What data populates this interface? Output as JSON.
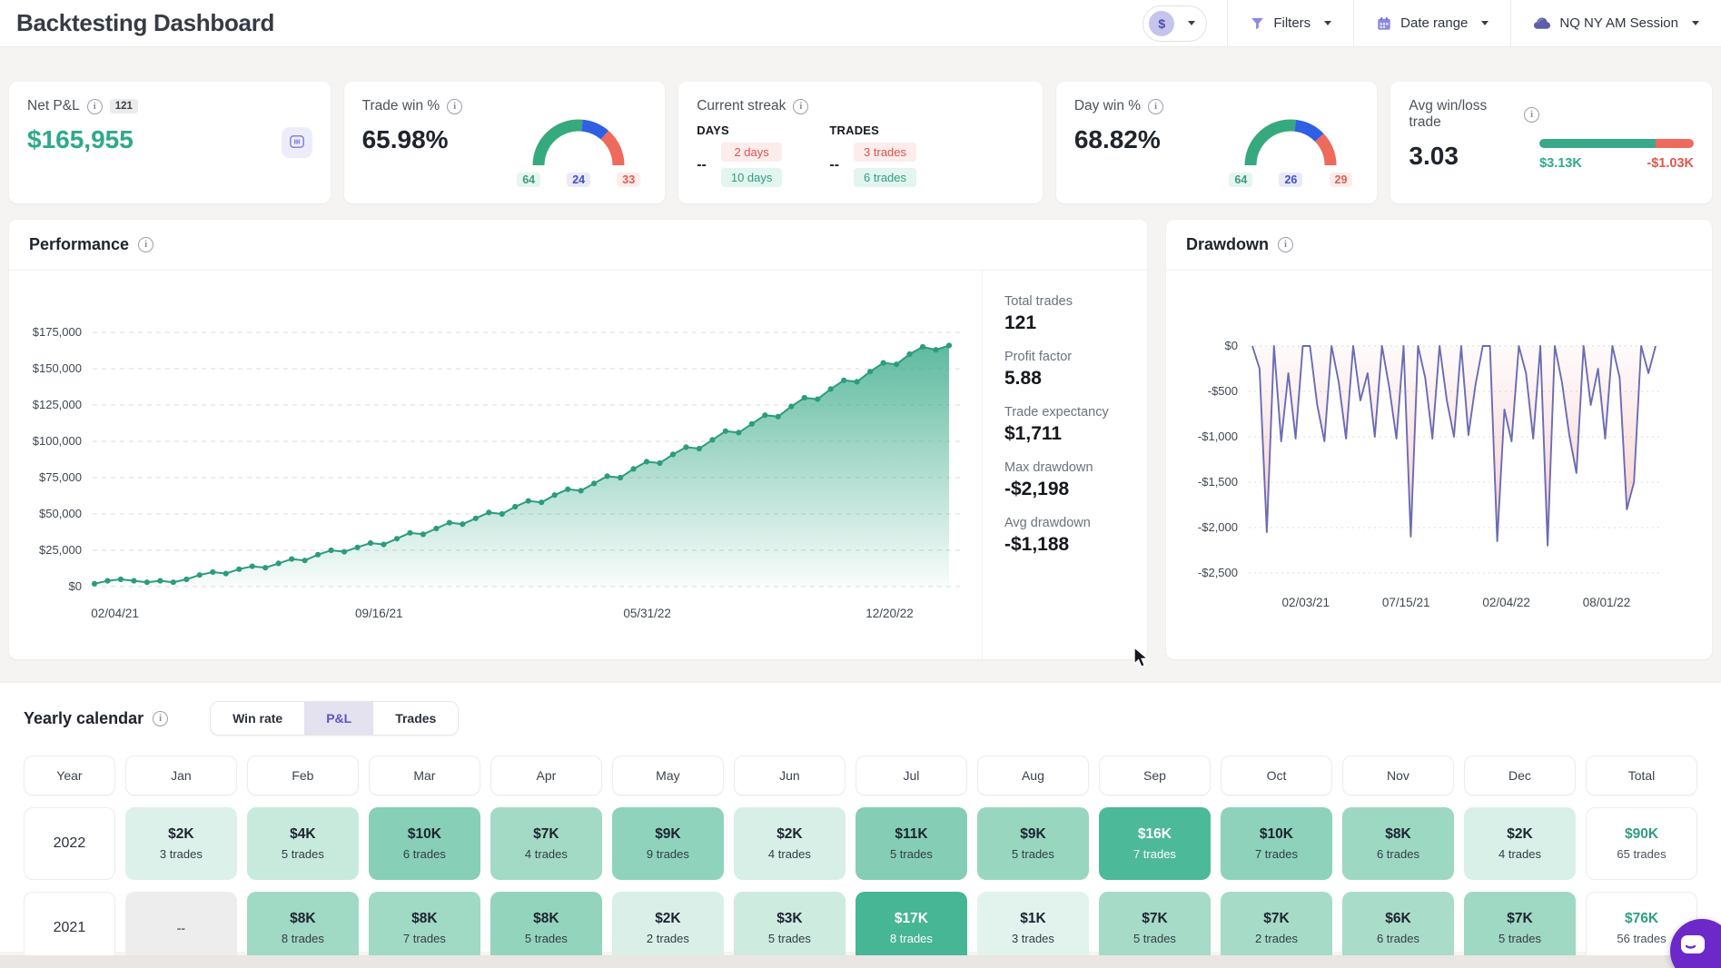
{
  "theme": {
    "green": "#2fa98c",
    "gauge_green": "#36a97e",
    "gauge_blue": "#2f5fe3",
    "gauge_red": "#ee6a5c",
    "equity_line": "#2b9c7e",
    "drawdown_line": "#6b6bb4",
    "accent_purple": "#5b54c8"
  },
  "header": {
    "title": "Backtesting Dashboard",
    "currency_symbol": "$",
    "filters_label": "Filters",
    "date_range_label": "Date range",
    "session_label": "NQ NY AM Session"
  },
  "stats": {
    "net_pnl": {
      "label": "Net P&L",
      "badge": "121",
      "value": "$165,955"
    },
    "trade_win": {
      "label": "Trade win %",
      "value": "65.98%",
      "gauge": {
        "wins": 64,
        "neutral": 24,
        "losses": 33
      }
    },
    "streak": {
      "label": "Current streak",
      "days_label": "DAYS",
      "days_value": "--",
      "days_loss": "2 days",
      "days_win": "10 days",
      "trades_label": "TRADES",
      "trades_value": "--",
      "trades_loss": "3 trades",
      "trades_win": "6 trades"
    },
    "day_win": {
      "label": "Day win %",
      "value": "68.82%",
      "gauge": {
        "wins": 64,
        "neutral": 26,
        "losses": 29
      }
    },
    "avg_win_loss": {
      "label": "Avg win/loss trade",
      "value": "3.03",
      "win": "$3.13K",
      "loss": "-$1.03K",
      "win_pct": 75.2
    }
  },
  "performance": {
    "title": "Performance",
    "stats": [
      {
        "label": "Total trades",
        "value": "121"
      },
      {
        "label": "Profit factor",
        "value": "5.88"
      },
      {
        "label": "Trade expectancy",
        "value": "$1,711"
      },
      {
        "label": "Max drawdown",
        "value": "-$2,198"
      },
      {
        "label": "Avg drawdown",
        "value": "-$1,188"
      }
    ]
  },
  "drawdown": {
    "title": "Drawdown"
  },
  "calendar": {
    "title": "Yearly calendar",
    "tabs": [
      "Win rate",
      "P&L",
      "Trades"
    ],
    "active_tab": "P&L",
    "columns": [
      "Year",
      "Jan",
      "Feb",
      "Mar",
      "Apr",
      "May",
      "Jun",
      "Jul",
      "Aug",
      "Sep",
      "Oct",
      "Nov",
      "Dec",
      "Total"
    ],
    "rows": [
      {
        "year": "2022",
        "cells": [
          {
            "value": "$2K",
            "trades": "3 trades",
            "bg": "#dcf1e9"
          },
          {
            "value": "$4K",
            "trades": "5 trades",
            "bg": "#c8eadd"
          },
          {
            "value": "$10K",
            "trades": "6 trades",
            "bg": "#87cfb6"
          },
          {
            "value": "$7K",
            "trades": "4 trades",
            "bg": "#a3dac5"
          },
          {
            "value": "$9K",
            "trades": "9 trades",
            "bg": "#8fd3bc"
          },
          {
            "value": "$2K",
            "trades": "4 trades",
            "bg": "#d7efe6"
          },
          {
            "value": "$11K",
            "trades": "5 trades",
            "bg": "#85ceb5"
          },
          {
            "value": "$9K",
            "trades": "5 trades",
            "bg": "#98d6c0"
          },
          {
            "value": "$16K",
            "trades": "7 trades",
            "bg": "#4cb998",
            "light": true
          },
          {
            "value": "$10K",
            "trades": "7 trades",
            "bg": "#8ed2bb"
          },
          {
            "value": "$8K",
            "trades": "6 trades",
            "bg": "#9dd8c3"
          },
          {
            "value": "$2K",
            "trades": "4 trades",
            "bg": "#d9f0e8"
          }
        ],
        "total": {
          "value": "$90K",
          "trades": "65 trades"
        }
      },
      {
        "year": "2021",
        "cells": [
          {
            "value": "--",
            "trades": "",
            "bg": "#ededed",
            "empty": true
          },
          {
            "value": "$8K",
            "trades": "8 trades",
            "bg": "#a0d9c4"
          },
          {
            "value": "$8K",
            "trades": "7 trades",
            "bg": "#a0d9c4"
          },
          {
            "value": "$8K",
            "trades": "5 trades",
            "bg": "#93d4bd"
          },
          {
            "value": "$2K",
            "trades": "2 trades",
            "bg": "#d9efe8"
          },
          {
            "value": "$3K",
            "trades": "5 trades",
            "bg": "#cdebdf"
          },
          {
            "value": "$17K",
            "trades": "8 trades",
            "bg": "#46b694",
            "light": true
          },
          {
            "value": "$1K",
            "trades": "3 trades",
            "bg": "#e1f3ec"
          },
          {
            "value": "$7K",
            "trades": "5 trades",
            "bg": "#a5dbc7"
          },
          {
            "value": "$7K",
            "trades": "2 trades",
            "bg": "#a5dbc7"
          },
          {
            "value": "$6K",
            "trades": "6 trades",
            "bg": "#a9dcc9"
          },
          {
            "value": "$7K",
            "trades": "5 trades",
            "bg": "#9fd8c3"
          }
        ],
        "total": {
          "value": "$76K",
          "trades": "56 trades"
        }
      }
    ]
  },
  "chart_data": [
    {
      "type": "area",
      "title": "Performance (cumulative P&L, USD)",
      "ylim": [
        0,
        175000
      ],
      "y_ticks": [
        175000,
        150000,
        125000,
        100000,
        75000,
        50000,
        25000,
        0
      ],
      "y_tick_labels": [
        "$175,000",
        "$150,000",
        "$125,000",
        "$100,000",
        "$75,000",
        "$50,000",
        "$25,000",
        "$0"
      ],
      "x_tick_labels": [
        "02/04/21",
        "09/16/21",
        "05/31/22",
        "12/20/22"
      ],
      "x_tick_pos": [
        0.03,
        0.335,
        0.645,
        0.925
      ],
      "grid": "dashed",
      "values": [
        2000,
        4000,
        5000,
        4000,
        3000,
        4000,
        3000,
        5000,
        8000,
        10000,
        9000,
        12000,
        14000,
        13000,
        16000,
        19000,
        18000,
        22000,
        25000,
        24000,
        27000,
        30000,
        29000,
        33000,
        37000,
        36000,
        40000,
        44000,
        43000,
        47000,
        51000,
        50000,
        55000,
        59000,
        58000,
        63000,
        67000,
        66000,
        71000,
        76000,
        75000,
        81000,
        86000,
        85000,
        91000,
        96000,
        95000,
        101000,
        107000,
        106000,
        112000,
        118000,
        117000,
        124000,
        130000,
        129000,
        136000,
        142000,
        141000,
        148000,
        154000,
        153000,
        160000,
        165000,
        163000,
        165955
      ]
    },
    {
      "type": "line",
      "title": "Drawdown (USD)",
      "ylim": [
        -2500,
        0
      ],
      "y_ticks": [
        0,
        -500,
        -1000,
        -1500,
        -2000,
        -2500
      ],
      "y_tick_labels": [
        "$0",
        "-$500",
        "-$1,000",
        "-$1,500",
        "-$2,000",
        "-$2,500"
      ],
      "x_tick_labels": [
        "02/03/21",
        "07/15/21",
        "02/04/22",
        "08/01/22"
      ],
      "x_tick_pos": [
        0.08,
        0.32,
        0.56,
        0.8
      ],
      "grid": "dotted",
      "values": [
        0,
        -250,
        -2050,
        0,
        -1050,
        -300,
        -1020,
        0,
        0,
        -650,
        -1050,
        0,
        -400,
        -1020,
        0,
        -600,
        -300,
        -1000,
        0,
        -450,
        -1020,
        0,
        -2100,
        0,
        -350,
        -1020,
        0,
        -600,
        -1000,
        0,
        -980,
        -420,
        0,
        0,
        -2150,
        -700,
        -1050,
        0,
        -300,
        -1020,
        0,
        -2198,
        0,
        -400,
        -980,
        -1400,
        0,
        -650,
        -250,
        -1020,
        0,
        -350,
        -1800,
        -1500,
        0,
        -300,
        0
      ]
    }
  ]
}
